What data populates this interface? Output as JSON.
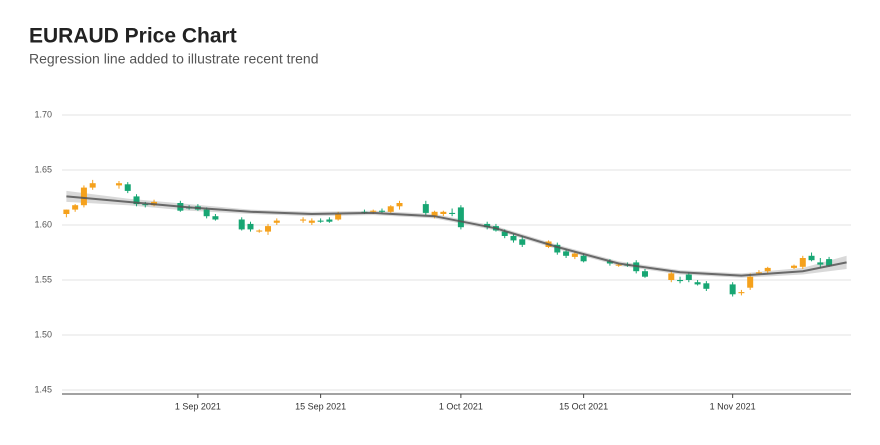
{
  "chart_data": {
    "type": "candlestick",
    "title": "EURAUD Price Chart",
    "subtitle": "Regression line added to illustrate recent trend",
    "up_color": "#f5a11c",
    "down_color": "#17a673",
    "trend_color": "#555555",
    "band_color": "#d0d0d0",
    "grid": true,
    "xlim": [
      "2021-08-16T12:00",
      "2021-11-14T12:00"
    ],
    "xticks": [
      {
        "value": "2021-09-01",
        "label": "1 Sep 2021"
      },
      {
        "value": "2021-09-15",
        "label": "15 Sep 2021"
      },
      {
        "value": "2021-10-01",
        "label": "1 Oct 2021"
      },
      {
        "value": "2021-10-15",
        "label": "15 Oct 2021"
      },
      {
        "value": "2021-11-01",
        "label": "1 Nov 2021"
      }
    ],
    "ylim": [
      1.45,
      1.7
    ],
    "yticks": [
      1.45,
      {
        "value": 1.5,
        "label": "1.50"
      },
      1.55,
      {
        "value": 1.6,
        "label": "1.60"
      },
      1.65,
      {
        "value": 1.7,
        "label": "1.70"
      }
    ],
    "x": [
      "2021-08-17",
      "2021-08-18",
      "2021-08-19",
      "2021-08-20",
      "2021-08-23",
      "2021-08-24",
      "2021-08-25",
      "2021-08-26",
      "2021-08-27",
      "2021-08-30",
      "2021-08-31",
      "2021-09-01",
      "2021-09-02",
      "2021-09-03",
      "2021-09-06",
      "2021-09-07",
      "2021-09-08",
      "2021-09-09",
      "2021-09-10",
      "2021-09-13",
      "2021-09-14",
      "2021-09-15",
      "2021-09-16",
      "2021-09-17",
      "2021-09-20",
      "2021-09-21",
      "2021-09-22",
      "2021-09-23",
      "2021-09-24",
      "2021-09-27",
      "2021-09-28",
      "2021-09-29",
      "2021-09-30",
      "2021-10-01",
      "2021-10-04",
      "2021-10-05",
      "2021-10-06",
      "2021-10-07",
      "2021-10-08",
      "2021-10-11",
      "2021-10-12",
      "2021-10-13",
      "2021-10-14",
      "2021-10-15",
      "2021-10-18",
      "2021-10-19",
      "2021-10-20",
      "2021-10-21",
      "2021-10-22",
      "2021-10-25",
      "2021-10-26",
      "2021-10-27",
      "2021-10-28",
      "2021-10-29",
      "2021-11-01",
      "2021-11-02",
      "2021-11-03",
      "2021-11-04",
      "2021-11-05",
      "2021-11-08",
      "2021-11-09",
      "2021-11-10",
      "2021-11-11",
      "2021-11-12"
    ],
    "open": [
      1.61,
      1.614,
      1.618,
      1.634,
      1.636,
      1.637,
      1.626,
      1.619,
      1.618,
      1.62,
      1.616,
      1.617,
      1.614,
      1.608,
      1.605,
      1.601,
      1.594,
      1.594,
      1.602,
      1.604,
      1.602,
      1.604,
      1.605,
      1.605,
      1.612,
      1.612,
      1.613,
      1.612,
      1.617,
      1.619,
      1.608,
      1.61,
      1.611,
      1.616,
      1.601,
      1.599,
      1.594,
      1.59,
      1.587,
      1.58,
      1.582,
      1.576,
      1.571,
      1.572,
      1.567,
      1.563,
      1.564,
      1.566,
      1.558,
      1.55,
      1.55,
      1.555,
      1.548,
      1.547,
      1.546,
      1.538,
      1.543,
      1.556,
      1.558,
      1.561,
      1.562,
      1.572,
      1.566,
      1.569
    ],
    "high": [
      1.614,
      1.619,
      1.636,
      1.641,
      1.64,
      1.639,
      1.628,
      1.621,
      1.623,
      1.622,
      1.618,
      1.619,
      1.616,
      1.61,
      1.607,
      1.603,
      1.596,
      1.601,
      1.606,
      1.607,
      1.606,
      1.606,
      1.607,
      1.612,
      1.614,
      1.614,
      1.615,
      1.618,
      1.622,
      1.622,
      1.613,
      1.613,
      1.615,
      1.618,
      1.603,
      1.601,
      1.596,
      1.592,
      1.59,
      1.586,
      1.584,
      1.578,
      1.576,
      1.574,
      1.569,
      1.565,
      1.566,
      1.568,
      1.56,
      1.558,
      1.553,
      1.557,
      1.55,
      1.549,
      1.548,
      1.541,
      1.556,
      1.559,
      1.562,
      1.564,
      1.572,
      1.575,
      1.57,
      1.571
    ],
    "low": [
      1.607,
      1.612,
      1.616,
      1.632,
      1.633,
      1.629,
      1.617,
      1.616,
      1.617,
      1.612,
      1.614,
      1.613,
      1.606,
      1.604,
      1.595,
      1.594,
      1.593,
      1.591,
      1.6,
      1.602,
      1.6,
      1.602,
      1.602,
      1.604,
      1.61,
      1.61,
      1.611,
      1.611,
      1.614,
      1.609,
      1.606,
      1.608,
      1.608,
      1.596,
      1.596,
      1.594,
      1.588,
      1.584,
      1.58,
      1.579,
      1.573,
      1.57,
      1.569,
      1.566,
      1.563,
      1.562,
      1.562,
      1.556,
      1.552,
      1.548,
      1.547,
      1.548,
      1.545,
      1.54,
      1.535,
      1.536,
      1.541,
      1.555,
      1.556,
      1.56,
      1.56,
      1.567,
      1.561,
      1.562
    ],
    "close": [
      1.614,
      1.618,
      1.634,
      1.638,
      1.638,
      1.631,
      1.619,
      1.618,
      1.621,
      1.613,
      1.615,
      1.614,
      1.608,
      1.605,
      1.596,
      1.596,
      1.595,
      1.599,
      1.604,
      1.605,
      1.604,
      1.603,
      1.603,
      1.61,
      1.611,
      1.613,
      1.612,
      1.617,
      1.62,
      1.611,
      1.612,
      1.612,
      1.61,
      1.598,
      1.598,
      1.595,
      1.59,
      1.586,
      1.582,
      1.585,
      1.575,
      1.572,
      1.574,
      1.567,
      1.565,
      1.564,
      1.563,
      1.558,
      1.553,
      1.556,
      1.549,
      1.55,
      1.546,
      1.542,
      1.537,
      1.539,
      1.553,
      1.557,
      1.561,
      1.563,
      1.57,
      1.568,
      1.564,
      1.563
    ],
    "trend": {
      "x": [
        "2021-08-17",
        "2021-08-24",
        "2021-08-31",
        "2021-09-07",
        "2021-09-14",
        "2021-09-21",
        "2021-09-28",
        "2021-10-05",
        "2021-10-12",
        "2021-10-19",
        "2021-10-26",
        "2021-11-02",
        "2021-11-09",
        "2021-11-14"
      ],
      "values": [
        1.626,
        1.621,
        1.616,
        1.612,
        1.61,
        1.611,
        1.608,
        1.597,
        1.58,
        1.565,
        1.557,
        1.554,
        1.558,
        1.566
      ],
      "lower": [
        1.621,
        1.618,
        1.613,
        1.61,
        1.608,
        1.609,
        1.606,
        1.595,
        1.578,
        1.563,
        1.555,
        1.552,
        1.555,
        1.56
      ],
      "upper": [
        1.631,
        1.624,
        1.619,
        1.614,
        1.612,
        1.613,
        1.61,
        1.599,
        1.582,
        1.567,
        1.559,
        1.556,
        1.561,
        1.572
      ]
    }
  }
}
